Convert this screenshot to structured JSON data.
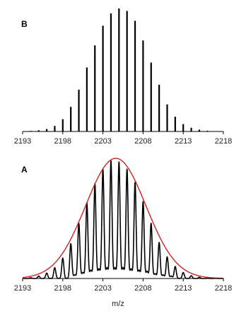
{
  "chart_data": [
    {
      "panel": "B",
      "type": "bar",
      "title": "",
      "xlabel": "",
      "ylabel": "",
      "xlim": [
        2193,
        2218
      ],
      "ylim": [
        0,
        1.0
      ],
      "x_ticks": [
        2193,
        2198,
        2203,
        2208,
        2213,
        2218
      ],
      "grid": false,
      "colors": {
        "bars": "#000000",
        "axis": "#000000"
      },
      "x": [
        2193,
        2194,
        2195,
        2196,
        2197,
        2198,
        2199,
        2200,
        2201,
        2202,
        2203,
        2204,
        2205,
        2206,
        2207,
        2208,
        2209,
        2210,
        2211,
        2212,
        2213,
        2214,
        2215,
        2216,
        2217,
        2218
      ],
      "values": [
        0.0,
        0.005,
        0.01,
        0.02,
        0.045,
        0.1,
        0.2,
        0.34,
        0.52,
        0.7,
        0.86,
        0.96,
        1.0,
        0.98,
        0.9,
        0.74,
        0.56,
        0.38,
        0.22,
        0.12,
        0.06,
        0.03,
        0.015,
        0.006,
        0.002,
        0.0
      ]
    },
    {
      "panel": "A",
      "type": "line",
      "title": "",
      "xlabel": "m/z",
      "ylabel": "",
      "xlim": [
        2193,
        2218
      ],
      "ylim": [
        0,
        1.0
      ],
      "x_ticks": [
        2193,
        2198,
        2203,
        2208,
        2213,
        2218
      ],
      "grid": false,
      "colors": {
        "spectrum": "#000000",
        "envelope": "#cc2222",
        "axis": "#000000"
      },
      "peaks": {
        "x": [
          2194,
          2195,
          2196,
          2197,
          2198,
          2199,
          2200,
          2201,
          2202,
          2203,
          2204,
          2205,
          2206,
          2207,
          2208,
          2209,
          2210,
          2211,
          2212,
          2213,
          2214,
          2215,
          2216,
          2217
        ],
        "values": [
          0.006,
          0.02,
          0.045,
          0.09,
          0.17,
          0.29,
          0.46,
          0.63,
          0.79,
          0.91,
          0.98,
          0.97,
          0.91,
          0.8,
          0.64,
          0.46,
          0.3,
          0.18,
          0.1,
          0.05,
          0.023,
          0.01,
          0.004,
          0.002
        ],
        "width": 0.13
      },
      "secondary_peaks": {
        "x": [
          2199.5,
          2200.5,
          2201.5,
          2202.5,
          2203.5,
          2204.5,
          2205.5,
          2206.5,
          2207.5,
          2208.5,
          2209.5,
          2210.5,
          2211.5
        ],
        "values": [
          0.03,
          0.05,
          0.07,
          0.08,
          0.09,
          0.09,
          0.09,
          0.08,
          0.07,
          0.06,
          0.04,
          0.03,
          0.02
        ]
      },
      "envelope": {
        "center": 2204.6,
        "sigma": 3.75,
        "height": 1.0
      }
    }
  ]
}
